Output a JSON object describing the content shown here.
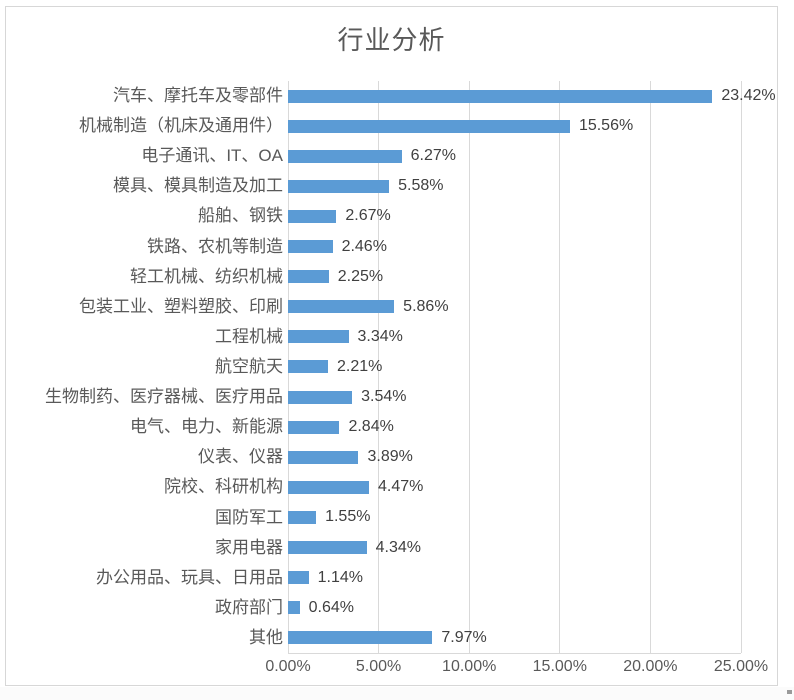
{
  "chart_data": {
    "type": "bar",
    "orientation": "horizontal",
    "title": "行业分析",
    "categories": [
      "汽车、摩托车及零部件",
      "机械制造（机床及通用件）",
      "电子通讯、IT、OA",
      "模具、模具制造及加工",
      "船舶、钢铁",
      "铁路、农机等制造",
      "轻工机械、纺织机械",
      "包装工业、塑料塑胶、印刷",
      "工程机械",
      "航空航天",
      "生物制药、医疗器械、医疗用品",
      "电气、电力、新能源",
      "仪表、仪器",
      "院校、科研机构",
      "国防军工",
      "家用电器",
      "办公用品、玩具、日用品",
      "政府部门",
      "其他"
    ],
    "values": [
      23.42,
      15.56,
      6.27,
      5.58,
      2.67,
      2.46,
      2.25,
      5.86,
      3.34,
      2.21,
      3.54,
      2.84,
      3.89,
      4.47,
      1.55,
      4.34,
      1.14,
      0.64,
      7.97
    ],
    "value_labels": [
      "23.42%",
      "15.56%",
      "6.27%",
      "5.58%",
      "2.67%",
      "2.46%",
      "2.25%",
      "5.86%",
      "3.34%",
      "2.21%",
      "3.54%",
      "2.84%",
      "3.89%",
      "4.47%",
      "1.55%",
      "4.34%",
      "1.14%",
      "0.64%",
      "7.97%"
    ],
    "x_ticks": [
      "0.00%",
      "5.00%",
      "10.00%",
      "15.00%",
      "20.00%",
      "25.00%"
    ],
    "xlim": [
      0,
      25
    ],
    "grid": "vertical-major",
    "legend_position": "none",
    "colors": {
      "bar": "#5B9BD5",
      "gridline": "#d9d9d9",
      "title_text": "#595959",
      "category_text": "#595959",
      "value_text": "#404040",
      "frame_border": "#d7d7d7"
    }
  }
}
